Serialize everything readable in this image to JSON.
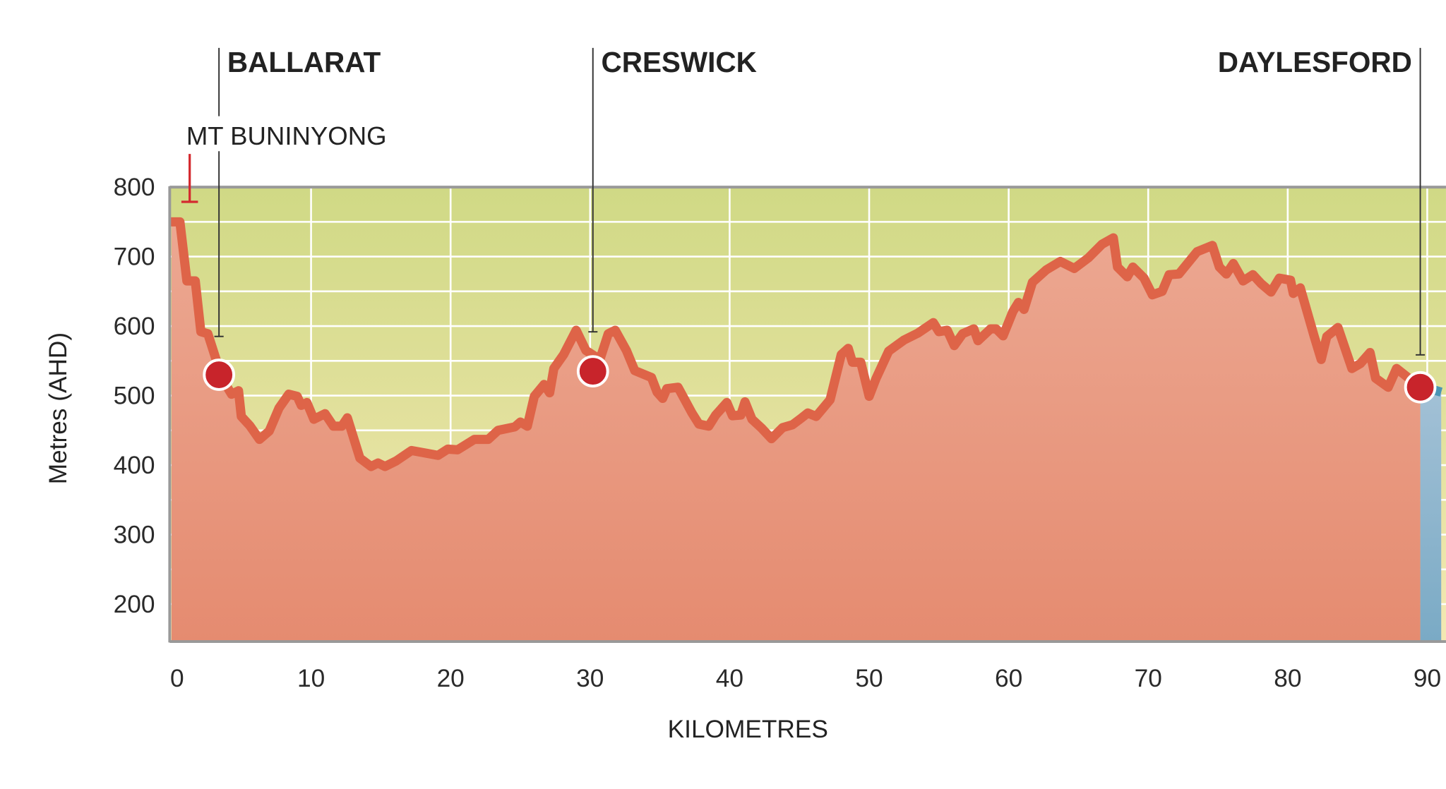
{
  "chart_data": {
    "type": "area",
    "title": "",
    "xlabel": "KILOMETRES",
    "ylabel": "Metres (AHD)",
    "xlim": [
      0,
      91
    ],
    "ylim": [
      148,
      800
    ],
    "x_ticks": [
      "0",
      "10",
      "20",
      "30",
      "40",
      "50",
      "60",
      "70",
      "80",
      "90"
    ],
    "y_ticks": [
      "800",
      "700",
      "600",
      "500",
      "400",
      "300",
      "200"
    ],
    "grid": true,
    "series": [
      {
        "x": [
          0,
          0.6,
          1.1,
          1.7,
          2.1,
          2.6,
          3.4,
          4.0,
          4.3,
          4.8,
          5.0,
          5.6,
          6.3,
          7.0,
          7.7,
          8.4,
          9.0,
          9.3,
          9.7,
          10.2,
          11.0,
          11.6,
          12.2,
          12.6,
          13.5,
          14.3,
          14.8,
          15.3,
          16.1,
          17.2,
          19.1,
          19.8,
          20.5,
          21.7,
          22.7,
          23.4,
          24.6,
          25.0,
          25.5,
          26.0,
          26.7,
          27.1,
          27.4,
          28.1,
          29.0,
          29.7,
          30.7,
          31.3,
          31.8,
          32.6,
          33.2,
          34.4,
          34.8,
          35.2,
          35.5,
          36.3,
          37.3,
          37.8,
          38.5,
          39.0,
          39.8,
          40.2,
          40.8,
          41.1,
          41.6,
          42.3,
          43.0,
          43.8,
          44.5,
          45.1,
          45.6,
          46.2,
          47.2,
          48.0,
          48.5,
          48.8,
          49.4,
          50.0,
          50.5,
          51.4,
          52.5,
          53.5,
          54.6,
          55.0,
          55.6,
          56.1,
          56.7,
          57.5,
          57.8,
          58.7,
          59.1,
          59.6,
          60.3,
          60.7,
          61.1,
          61.7,
          62.7,
          63.7,
          64.7,
          65.7,
          66.7,
          67.5,
          67.8,
          68.5,
          68.9,
          69.7,
          70.3,
          71.0,
          71.5,
          72.2,
          73.5,
          74.6,
          75.1,
          75.6,
          76.1,
          76.8,
          77.5,
          78.1,
          78.8,
          79.4,
          80.2,
          80.4,
          80.9,
          81.9,
          82.4,
          82.8,
          83.6,
          84.6,
          85.2,
          85.9,
          86.3,
          87.2,
          87.8,
          89.5
        ],
        "y": [
          750,
          750,
          665,
          665,
          592,
          589,
          539,
          512,
          502,
          507,
          470,
          457,
          437,
          449,
          482,
          502,
          499,
          486,
          490,
          466,
          474,
          456,
          456,
          468,
          410,
          398,
          403,
          398,
          406,
          421,
          414,
          423,
          422,
          437,
          437,
          450,
          455,
          462,
          456,
          499,
          516,
          504,
          539,
          559,
          594,
          565,
          552,
          589,
          594,
          565,
          536,
          526,
          505,
          496,
          510,
          512,
          475,
          459,
          456,
          472,
          490,
          471,
          472,
          491,
          466,
          453,
          438,
          454,
          458,
          467,
          475,
          470,
          494,
          559,
          568,
          548,
          548,
          499,
          525,
          564,
          580,
          590,
          605,
          592,
          594,
          572,
          589,
          596,
          579,
          596,
          596,
          586,
          621,
          634,
          624,
          663,
          681,
          693,
          683,
          698,
          718,
          727,
          685,
          671,
          685,
          669,
          645,
          650,
          674,
          675,
          707,
          716,
          685,
          675,
          690,
          665,
          674,
          661,
          649,
          669,
          666,
          647,
          655,
          585,
          552,
          585,
          598,
          539,
          546,
          562,
          525,
          512,
          539,
          512
        ]
      }
    ],
    "beyond_series": {
      "x": [
        89.5,
        90.5,
        91
      ],
      "y": [
        512,
        508,
        505
      ]
    },
    "towns": [
      {
        "name": "BALLARAT",
        "km": 3.4,
        "elev": 530
      },
      {
        "name": "CRESWICK",
        "km": 30.2,
        "elev": 535
      },
      {
        "name": "DAYLESFORD",
        "km": 89.5,
        "elev": 512
      }
    ],
    "summit": {
      "name": "MT BUNINYONG",
      "km": 1.3,
      "elev": 780
    },
    "colors": {
      "line": "#de6448",
      "fill_top": "#eca892",
      "fill_bottom": "#e58b70",
      "sky_top": "#d0d985",
      "sky_bottom": "#f3e8b3",
      "town_dot": "#c8242b",
      "summit_marker": "#d42a2f",
      "beyond_fill_top": "#a3c1d6",
      "beyond_fill_bottom": "#7aaac5",
      "beyond_line": "#4a95b5",
      "frame": "#999999"
    }
  }
}
